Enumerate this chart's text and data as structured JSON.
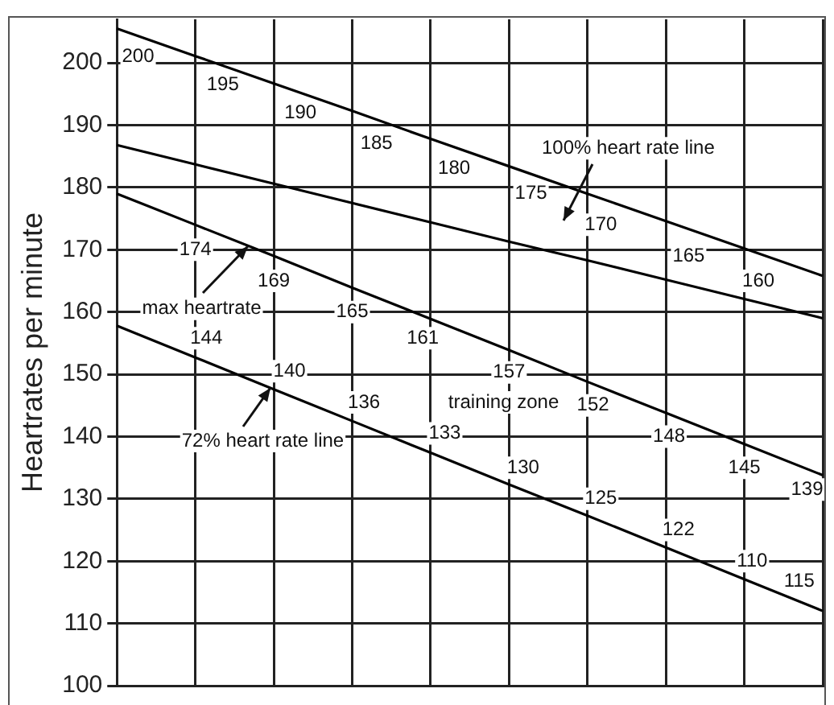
{
  "chart_data": {
    "type": "line",
    "ylabel": "Heartrates per minute",
    "categories": [
      null,
      null,
      null,
      null,
      null,
      null,
      null,
      null,
      null,
      null
    ],
    "ylim": [
      100,
      207
    ],
    "yticks": [
      100,
      110,
      120,
      130,
      140,
      150,
      160,
      170,
      180,
      190,
      200
    ],
    "grid": true,
    "tick_labels": "y",
    "legend": false,
    "marker": "none",
    "line_style": "solid",
    "series": [
      {
        "color": "#000000",
        "values": [
          205.5,
          201.1,
          196.7,
          192.3,
          187.8,
          183.4,
          179,
          174.6,
          170.2,
          165.8
        ]
      },
      {
        "color": "#000000",
        "values": [
          186.8,
          183.7,
          180.6,
          177.5,
          174.4,
          171.3,
          168.3,
          165.2,
          162.1,
          159
        ]
      },
      {
        "color": "#000000",
        "values": [
          179,
          174,
          169,
          163.9,
          158.9,
          153.9,
          148.8,
          143.8,
          138.8,
          133.8
        ]
      },
      {
        "color": "#000000",
        "values": [
          157.8,
          152.7,
          147.6,
          142.5,
          137.4,
          132.3,
          127.3,
          122.2,
          117.1,
          112
        ]
      }
    ],
    "annotations": [
      {
        "text": "200",
        "y": 201
      },
      {
        "text": "195",
        "y": 196.5
      },
      {
        "text": "190",
        "y": 192
      },
      {
        "text": "185",
        "y": 187
      },
      {
        "text": "180",
        "y": 183
      },
      {
        "text": "175",
        "y": 179
      },
      {
        "text": "170",
        "y": 174
      },
      {
        "text": "165",
        "y": 169
      },
      {
        "text": "160",
        "y": 165
      },
      {
        "text": "174",
        "y": 170
      },
      {
        "text": "169",
        "y": 165
      },
      {
        "text": "165",
        "y": 160
      },
      {
        "text": "161",
        "y": 155.8
      },
      {
        "text": "157",
        "y": 150.3
      },
      {
        "text": "152",
        "y": 145
      },
      {
        "text": "148",
        "y": 140
      },
      {
        "text": "145",
        "y": 135
      },
      {
        "text": "139",
        "y": 131.5
      },
      {
        "text": "144",
        "y": 155.8
      },
      {
        "text": "140",
        "y": 150.5
      },
      {
        "text": "136",
        "y": 145.5
      },
      {
        "text": "133",
        "y": 140.5
      },
      {
        "text": "130",
        "y": 135
      },
      {
        "text": "125",
        "y": 130
      },
      {
        "text": "122",
        "y": 125
      },
      {
        "text": "110",
        "y": 120
      },
      {
        "text": "115",
        "y": 116.8
      },
      "100% heart rate line",
      "max heartrate",
      "training zone",
      "72% heart rate line"
    ]
  }
}
